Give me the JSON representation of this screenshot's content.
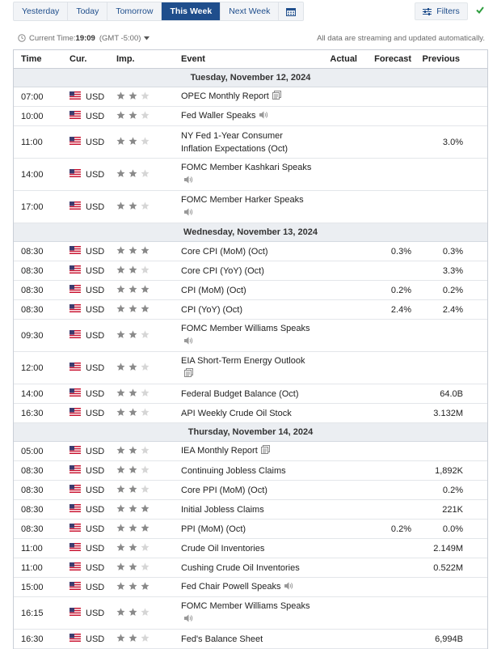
{
  "tabs": {
    "yesterday": "Yesterday",
    "today": "Today",
    "tomorrow": "Tomorrow",
    "this_week": "This Week",
    "next_week": "Next Week"
  },
  "filters_label": "Filters",
  "time_bar": {
    "label": "Current Time:",
    "time": "19:09",
    "tz": "(GMT -5:00)",
    "streaming": "All data are streaming and updated automatically."
  },
  "headers": {
    "time": "Time",
    "currency": "Cur.",
    "importance": "Imp.",
    "event": "Event",
    "actual": "Actual",
    "forecast": "Forecast",
    "previous": "Previous"
  },
  "colors": {
    "accent": "#1f4e8c",
    "star_on": "#8a8a8a",
    "star_off": "#d6d6d6"
  },
  "days": [
    {
      "label": "Tuesday, November 12, 2024",
      "events": [
        {
          "time": "07:00",
          "currency": "USD",
          "importance": 2,
          "name": "OPEC Monthly Report",
          "icon": "document-icon",
          "actual": "",
          "forecast": "",
          "previous": ""
        },
        {
          "time": "10:00",
          "currency": "USD",
          "importance": 2,
          "name": "Fed Waller Speaks",
          "icon": "speaker-icon",
          "actual": "",
          "forecast": "",
          "previous": ""
        },
        {
          "time": "11:00",
          "currency": "USD",
          "importance": 2,
          "name": "NY Fed 1-Year Consumer Inflation Expectations (Oct)",
          "icon": "",
          "actual": "",
          "forecast": "",
          "previous": "3.0%"
        },
        {
          "time": "14:00",
          "currency": "USD",
          "importance": 2,
          "name": "FOMC Member Kashkari Speaks",
          "icon": "speaker-icon",
          "actual": "",
          "forecast": "",
          "previous": ""
        },
        {
          "time": "17:00",
          "currency": "USD",
          "importance": 2,
          "name": "FOMC Member Harker Speaks",
          "icon": "speaker-icon",
          "actual": "",
          "forecast": "",
          "previous": ""
        }
      ]
    },
    {
      "label": "Wednesday, November 13, 2024",
      "events": [
        {
          "time": "08:30",
          "currency": "USD",
          "importance": 3,
          "name": "Core CPI (MoM) (Oct)",
          "icon": "",
          "actual": "",
          "forecast": "0.3%",
          "previous": "0.3%"
        },
        {
          "time": "08:30",
          "currency": "USD",
          "importance": 2,
          "name": "Core CPI (YoY) (Oct)",
          "icon": "",
          "actual": "",
          "forecast": "",
          "previous": "3.3%"
        },
        {
          "time": "08:30",
          "currency": "USD",
          "importance": 3,
          "name": "CPI (MoM) (Oct)",
          "icon": "",
          "actual": "",
          "forecast": "0.2%",
          "previous": "0.2%"
        },
        {
          "time": "08:30",
          "currency": "USD",
          "importance": 3,
          "name": "CPI (YoY) (Oct)",
          "icon": "",
          "actual": "",
          "forecast": "2.4%",
          "previous": "2.4%"
        },
        {
          "time": "09:30",
          "currency": "USD",
          "importance": 2,
          "name": "FOMC Member Williams Speaks",
          "icon": "speaker-icon",
          "actual": "",
          "forecast": "",
          "previous": ""
        },
        {
          "time": "12:00",
          "currency": "USD",
          "importance": 2,
          "name": "EIA Short-Term Energy Outlook",
          "icon": "document-icon",
          "actual": "",
          "forecast": "",
          "previous": ""
        },
        {
          "time": "14:00",
          "currency": "USD",
          "importance": 2,
          "name": "Federal Budget Balance (Oct)",
          "icon": "",
          "actual": "",
          "forecast": "",
          "previous": "64.0B"
        },
        {
          "time": "16:30",
          "currency": "USD",
          "importance": 2,
          "name": "API Weekly Crude Oil Stock",
          "icon": "",
          "actual": "",
          "forecast": "",
          "previous": "3.132M"
        }
      ]
    },
    {
      "label": "Thursday, November 14, 2024",
      "events": [
        {
          "time": "05:00",
          "currency": "USD",
          "importance": 2,
          "name": "IEA Monthly Report",
          "icon": "document-icon",
          "actual": "",
          "forecast": "",
          "previous": ""
        },
        {
          "time": "08:30",
          "currency": "USD",
          "importance": 2,
          "name": "Continuing Jobless Claims",
          "icon": "",
          "actual": "",
          "forecast": "",
          "previous": "1,892K"
        },
        {
          "time": "08:30",
          "currency": "USD",
          "importance": 2,
          "name": "Core PPI (MoM) (Oct)",
          "icon": "",
          "actual": "",
          "forecast": "",
          "previous": "0.2%"
        },
        {
          "time": "08:30",
          "currency": "USD",
          "importance": 3,
          "name": "Initial Jobless Claims",
          "icon": "",
          "actual": "",
          "forecast": "",
          "previous": "221K"
        },
        {
          "time": "08:30",
          "currency": "USD",
          "importance": 3,
          "name": "PPI (MoM) (Oct)",
          "icon": "",
          "actual": "",
          "forecast": "0.2%",
          "previous": "0.0%"
        },
        {
          "time": "11:00",
          "currency": "USD",
          "importance": 2,
          "name": "Crude Oil Inventories",
          "icon": "",
          "actual": "",
          "forecast": "",
          "previous": "2.149M"
        },
        {
          "time": "11:00",
          "currency": "USD",
          "importance": 2,
          "name": "Cushing Crude Oil Inventories",
          "icon": "",
          "actual": "",
          "forecast": "",
          "previous": "0.522M"
        },
        {
          "time": "15:00",
          "currency": "USD",
          "importance": 3,
          "name": "Fed Chair Powell Speaks",
          "icon": "speaker-icon",
          "actual": "",
          "forecast": "",
          "previous": ""
        },
        {
          "time": "16:15",
          "currency": "USD",
          "importance": 2,
          "name": "FOMC Member Williams Speaks",
          "icon": "speaker-icon",
          "actual": "",
          "forecast": "",
          "previous": ""
        },
        {
          "time": "16:30",
          "currency": "USD",
          "importance": 2,
          "name": "Fed's Balance Sheet",
          "icon": "",
          "actual": "",
          "forecast": "",
          "previous": "6,994B"
        }
      ]
    }
  ]
}
